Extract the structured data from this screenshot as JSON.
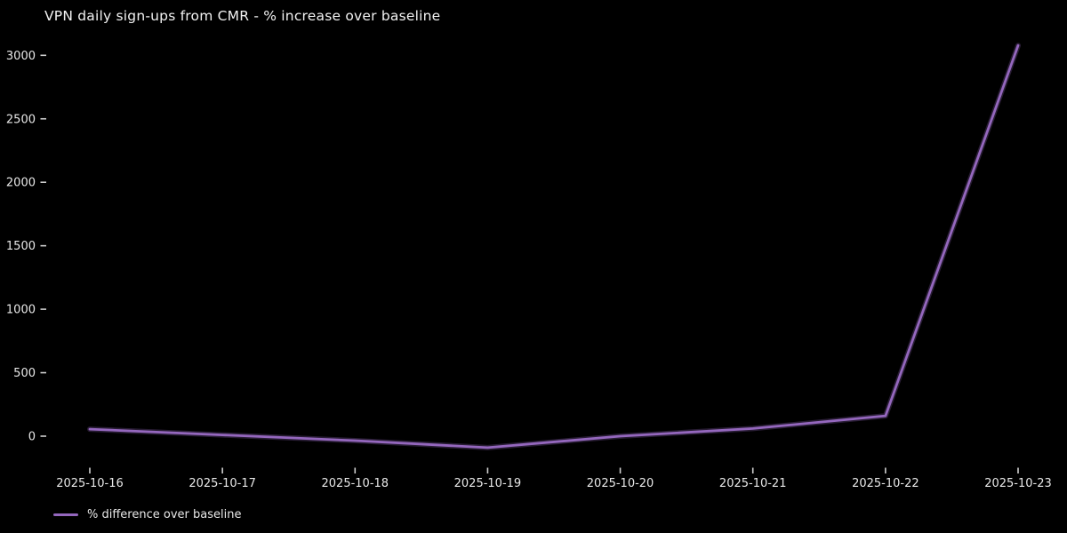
{
  "page": {
    "title": "VPN daily sign-ups from CMR - % increase over baseline"
  },
  "legend": {
    "label": "% difference over baseline"
  },
  "colors": {
    "background": "#000000",
    "line": "#9467bd",
    "title_text": "#f2f2f2",
    "tick_text": "#e8e8e8",
    "tick_mark": "#cfcfcf"
  },
  "chart_data": {
    "type": "line",
    "title": "VPN daily sign-ups from CMR - % increase over baseline",
    "xlabel": "",
    "ylabel": "",
    "x": [
      "2025-10-16",
      "2025-10-17",
      "2025-10-18",
      "2025-10-19",
      "2025-10-20",
      "2025-10-21",
      "2025-10-22",
      "2025-10-23"
    ],
    "series": [
      {
        "name": "% difference over baseline",
        "color": "#9467bd",
        "values": [
          55,
          10,
          -35,
          -90,
          0,
          60,
          160,
          3078
        ]
      }
    ],
    "yticks": [
      0,
      500,
      1000,
      1500,
      2000,
      2500,
      3000
    ],
    "ylim": [
      -240,
      3160
    ],
    "grid": false,
    "legend_position": "lower left",
    "background": "#000000"
  }
}
